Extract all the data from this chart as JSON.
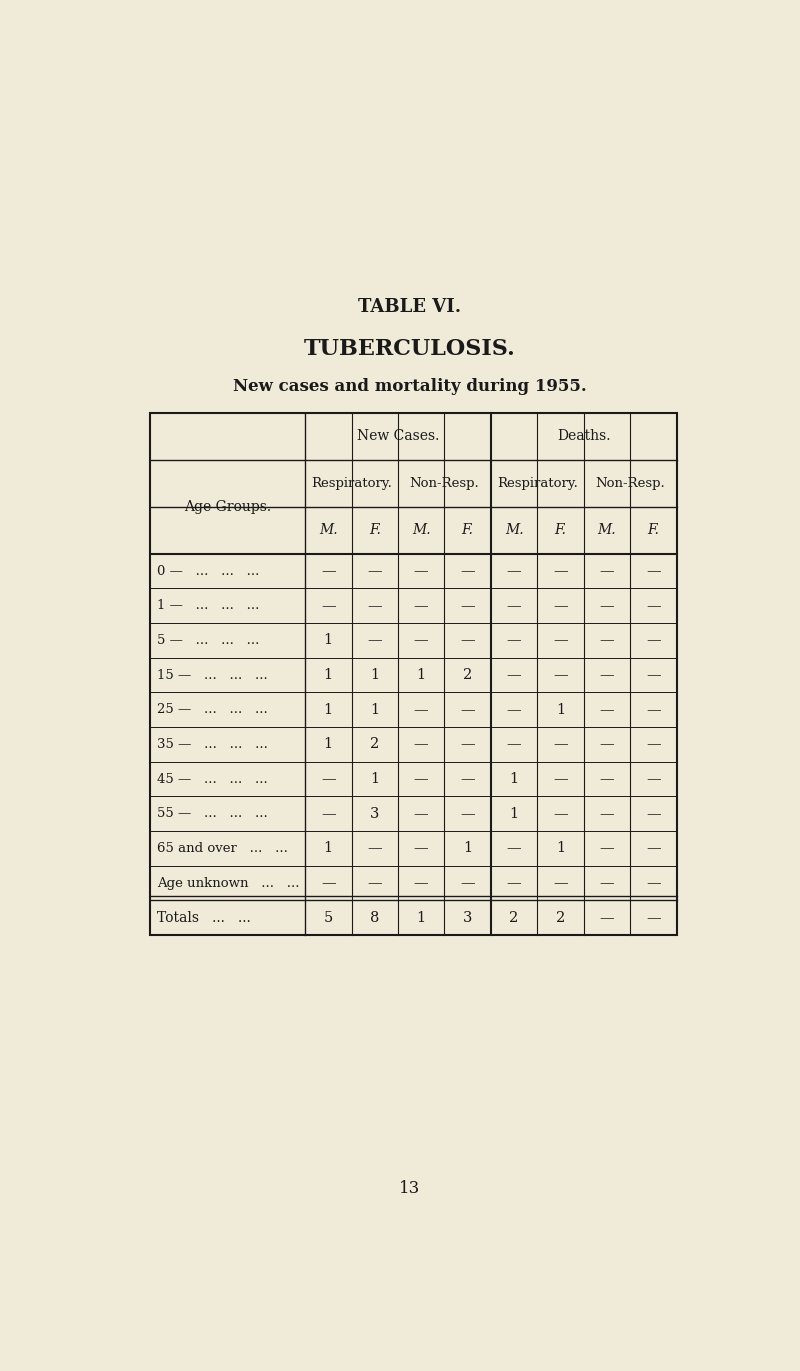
{
  "table_title": "TABLE VI.",
  "main_title": "TUBERCULOSIS.",
  "subtitle": "New cases and mortality during 1955.",
  "bg_color": "#f0ead8",
  "text_color": "#1a1a1a",
  "col_header_row1": [
    "New Cases.",
    "Deaths."
  ],
  "col_header_row2": [
    "Respiratory.",
    "Non-Resp.",
    "Respiratory.",
    "Non-Resp."
  ],
  "col_header_row3": [
    "M.",
    "F.",
    "M.",
    "F.",
    "M.",
    "F.",
    "M.",
    "F."
  ],
  "age_groups": [
    "0 —   ...   ...   ...",
    "1 —   ...   ...   ...",
    "5 —   ...   ...   ...",
    "15 —   ...   ...   ...",
    "25 —   ...   ...   ...",
    "35 —   ...   ...   ...",
    "45 —   ...   ...   ...",
    "55 —   ...   ...   ...",
    "65 and over   ...   ...",
    "Age unknown   ...   ..."
  ],
  "data": [
    [
      "—",
      "—",
      "—",
      "—",
      "—",
      "—",
      "—",
      "—"
    ],
    [
      "—",
      "—",
      "—",
      "—",
      "—",
      "—",
      "—",
      "—"
    ],
    [
      "1",
      "—",
      "—",
      "—",
      "—",
      "—",
      "—",
      "—"
    ],
    [
      "1",
      "1",
      "1",
      "2",
      "—",
      "—",
      "—",
      "—"
    ],
    [
      "1",
      "1",
      "—",
      "—",
      "—",
      "1",
      "—",
      "—"
    ],
    [
      "1",
      "2",
      "—",
      "—",
      "—",
      "—",
      "—",
      "—"
    ],
    [
      "—",
      "1",
      "—",
      "—",
      "1",
      "—",
      "—",
      "—"
    ],
    [
      "—",
      "3",
      "—",
      "—",
      "1",
      "—",
      "—",
      "—"
    ],
    [
      "1",
      "—",
      "—",
      "1",
      "—",
      "1",
      "—",
      "—"
    ],
    [
      "—",
      "—",
      "—",
      "—",
      "—",
      "—",
      "—",
      "—"
    ]
  ],
  "totals": [
    "5",
    "8",
    "1",
    "3",
    "2",
    "2",
    "—",
    "—"
  ],
  "page_number": "13"
}
